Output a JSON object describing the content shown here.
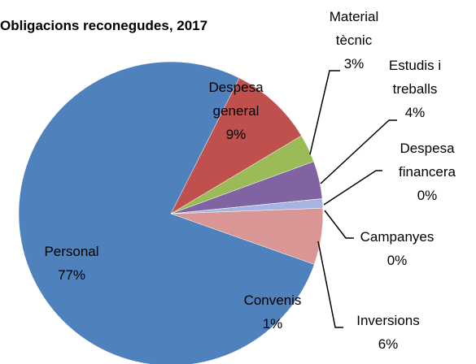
{
  "chart_data": {
    "type": "pie",
    "title": "Obligacions reconegudes, 2017",
    "categories": [
      "Personal",
      "Despesa general",
      "Material tècnic",
      "Estudis i treballs",
      "Despesa financera",
      "Campanyes",
      "Convenis",
      "Inversions"
    ],
    "values": [
      77,
      9,
      3,
      4,
      0,
      0,
      1,
      6
    ],
    "value_labels": [
      "77%",
      "9%",
      "3%",
      "4%",
      "0%",
      "0%",
      "1%",
      "6%"
    ],
    "colors": [
      "#4f81bd",
      "#c0504d",
      "#9bbb59",
      "#8064a2",
      "#4bacc6",
      "#f79646",
      "#a5b4e0",
      "#d99694"
    ]
  }
}
